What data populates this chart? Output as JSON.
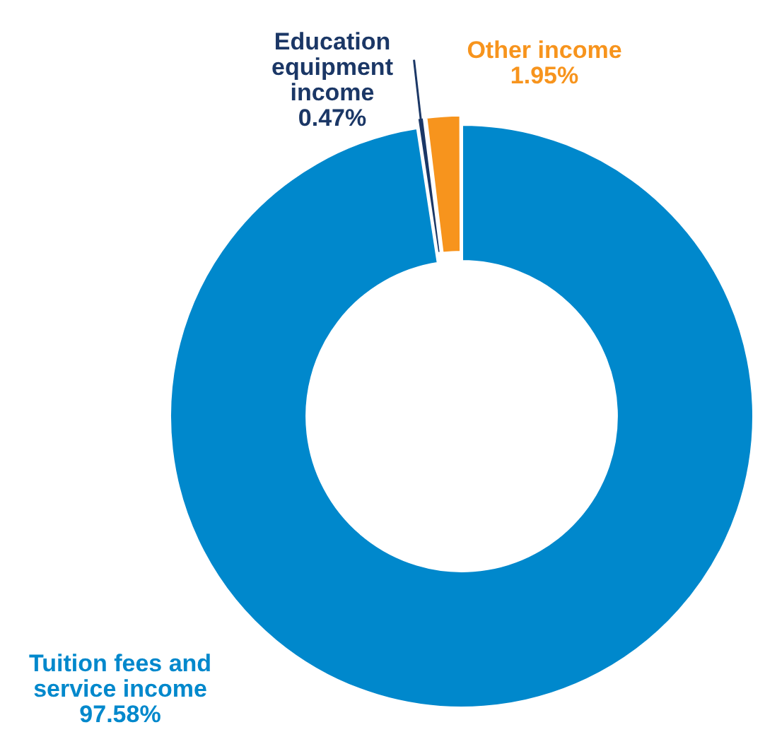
{
  "chart_data": {
    "type": "donut",
    "categories": [
      "Tuition fees and service income",
      "Education equipment income",
      "Other income"
    ],
    "values": [
      97.58,
      0.47,
      1.95
    ],
    "colors": [
      "#0088cc",
      "#1b3766",
      "#f7941d"
    ],
    "value_labels": [
      "97.58%",
      "0.47%",
      "1.95%"
    ],
    "legend": false
  }
}
